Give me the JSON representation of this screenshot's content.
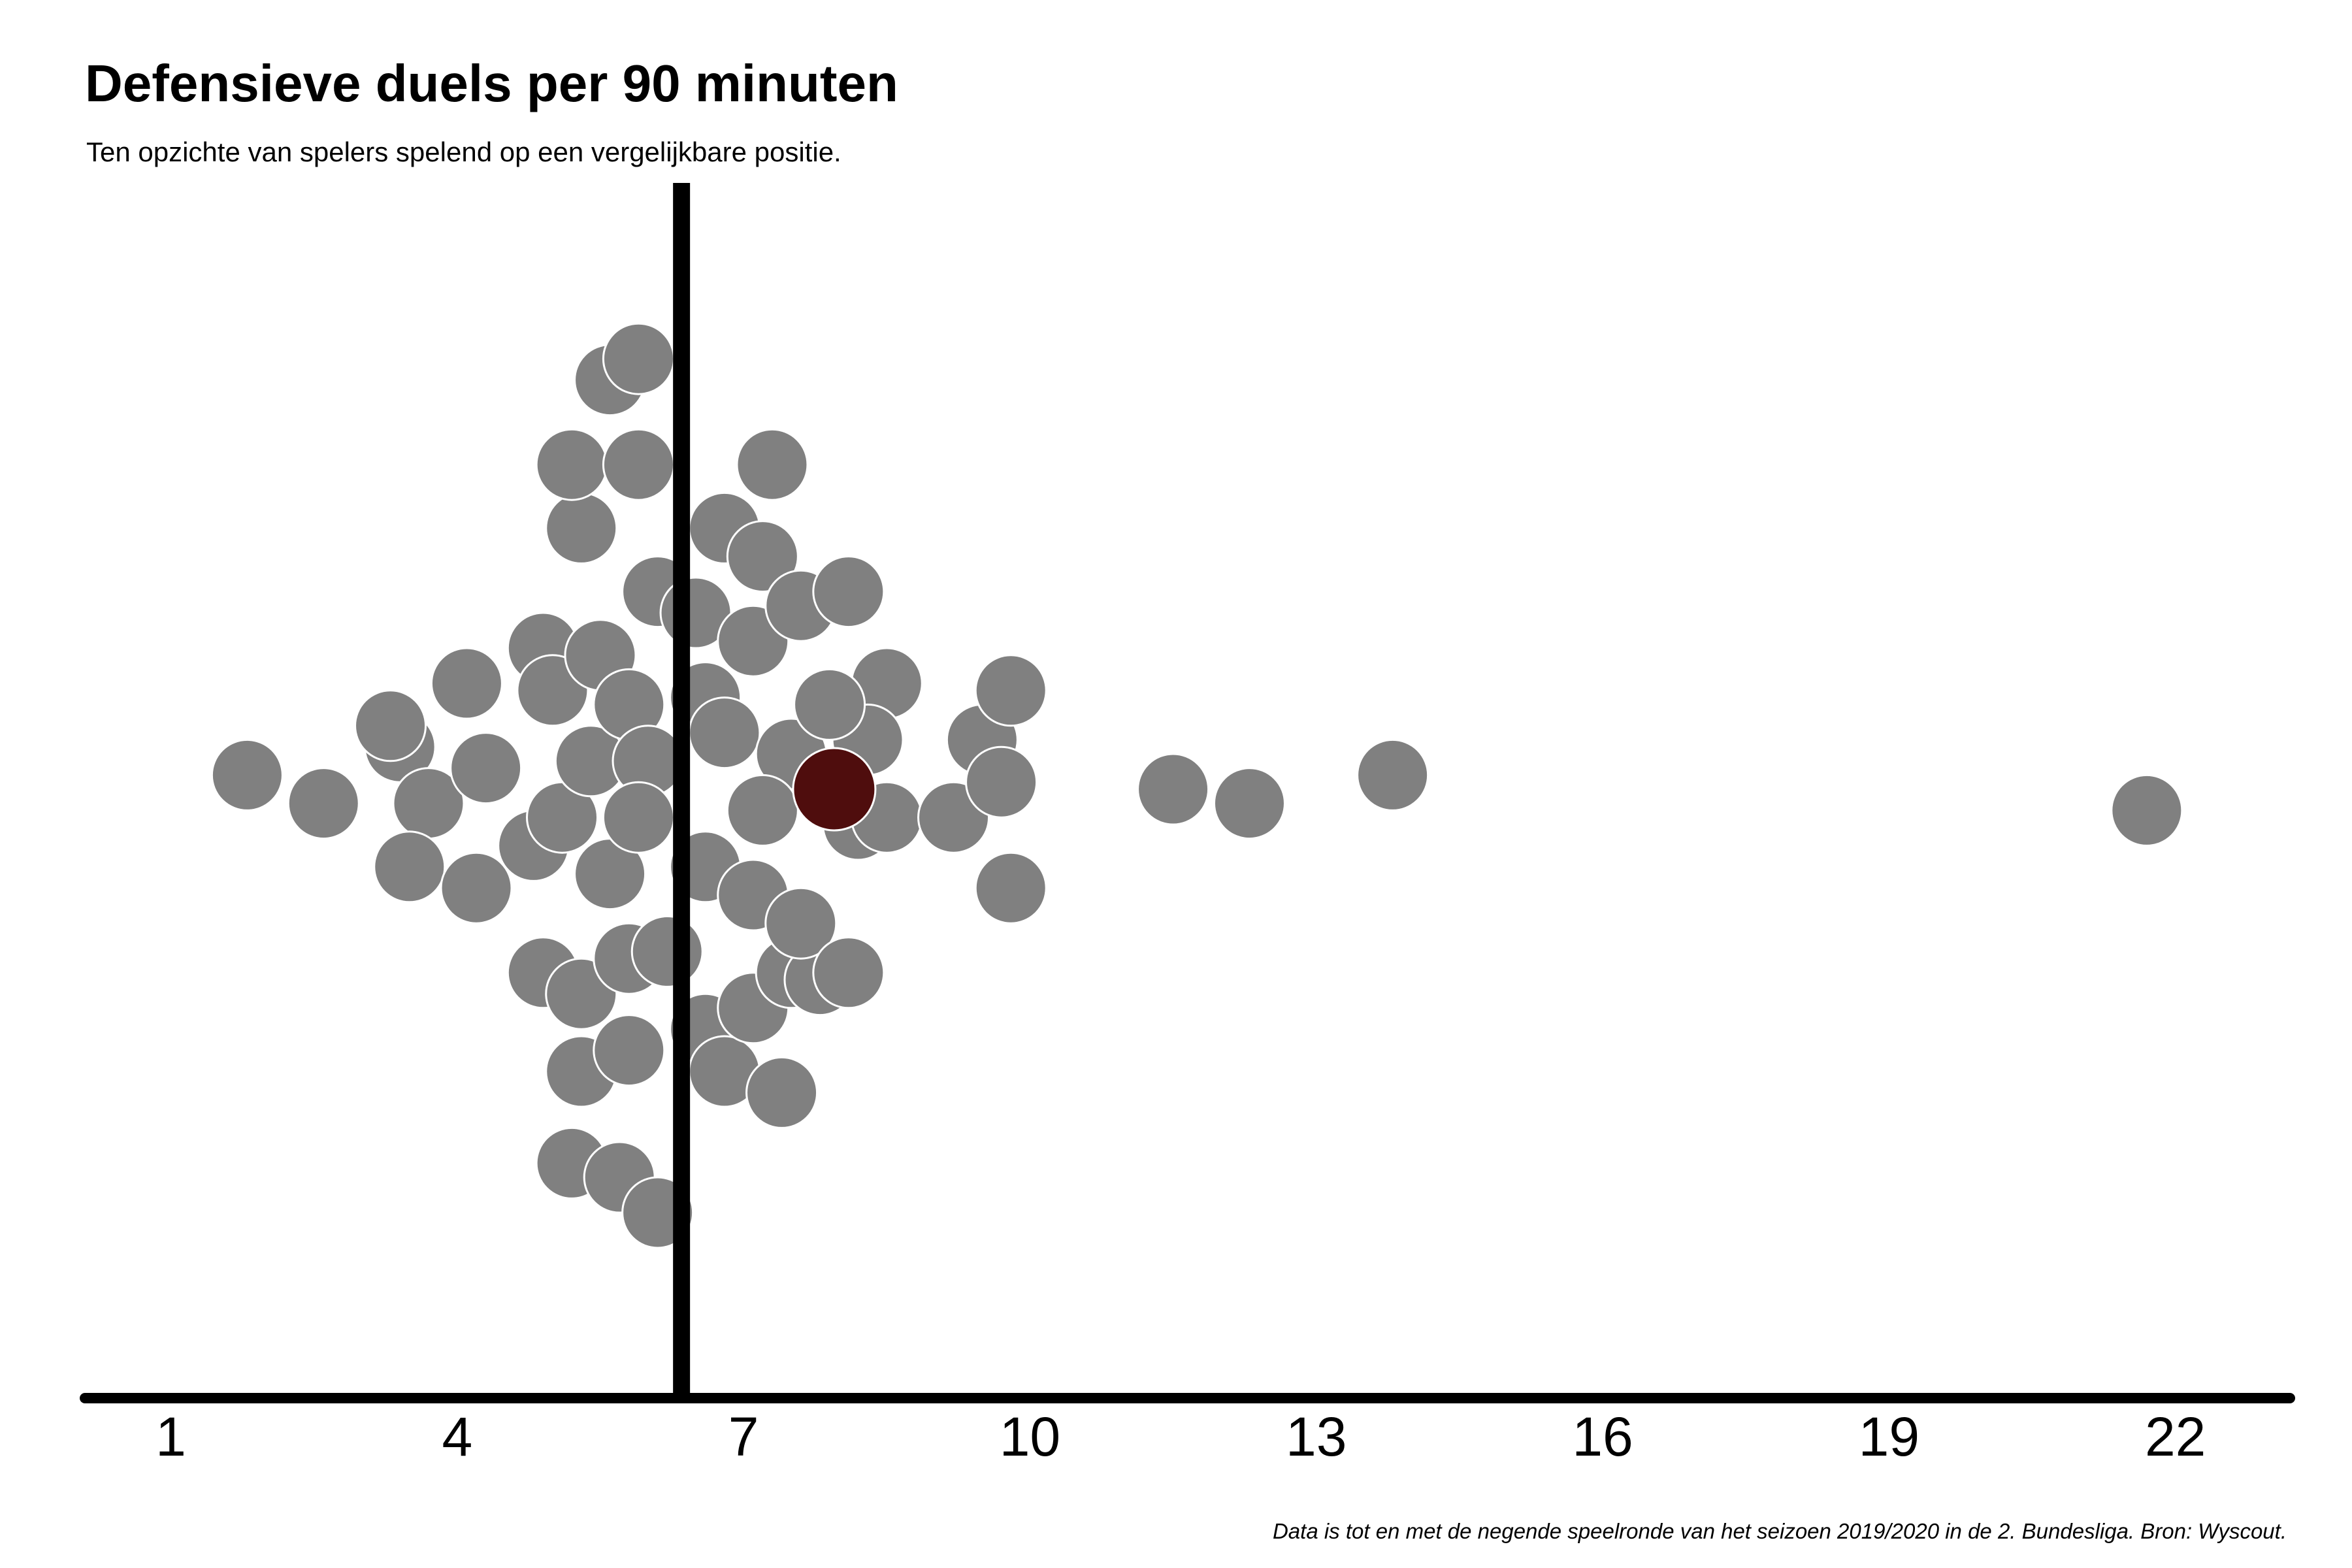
{
  "chart_data": {
    "type": "scatter",
    "subtype": "beeswarm",
    "title": "Defensieve duels per 90 minuten",
    "subtitle": "Ten opzichte van spelers spelend op een vergelijkbare positie.",
    "caption": "Data is tot en met de negende speelronde van het seizoen 2019/2020 in de 2. Bundesliga. Bron: Wyscout.",
    "xlabel": "",
    "ylabel": "",
    "xlim": [
      0.1,
      23.2
    ],
    "x_ticks": [
      1,
      4,
      7,
      10,
      13,
      16,
      19,
      22
    ],
    "x_tick_labels": [
      "1",
      "4",
      "7",
      "10",
      "13",
      "16",
      "19",
      "22"
    ],
    "reference_line": {
      "x": 6.35
    },
    "grid": false,
    "legend": "none",
    "colors": {
      "points": "#808080",
      "highlight": "#4f0d0d",
      "point_stroke": "#ffffff",
      "axis": "#000000"
    },
    "points": [
      {
        "x": 1.8,
        "y": 0.02
      },
      {
        "x": 2.6,
        "y": -0.02
      },
      {
        "x": 3.4,
        "y": 0.06
      },
      {
        "x": 3.3,
        "y": 0.09
      },
      {
        "x": 3.7,
        "y": -0.02
      },
      {
        "x": 3.5,
        "y": -0.11
      },
      {
        "x": 4.1,
        "y": 0.15
      },
      {
        "x": 4.3,
        "y": 0.03
      },
      {
        "x": 4.2,
        "y": -0.14
      },
      {
        "x": 4.9,
        "y": 0.2
      },
      {
        "x": 5.0,
        "y": 0.14
      },
      {
        "x": 4.8,
        "y": -0.08
      },
      {
        "x": 5.1,
        "y": -0.04
      },
      {
        "x": 4.9,
        "y": -0.26
      },
      {
        "x": 5.3,
        "y": -0.29
      },
      {
        "x": 5.4,
        "y": 0.04
      },
      {
        "x": 5.5,
        "y": 0.19
      },
      {
        "x": 5.6,
        "y": -0.12
      },
      {
        "x": 5.8,
        "y": 0.12
      },
      {
        "x": 5.3,
        "y": 0.37
      },
      {
        "x": 5.2,
        "y": 0.46
      },
      {
        "x": 5.9,
        "y": 0.46
      },
      {
        "x": 5.6,
        "y": 0.58
      },
      {
        "x": 5.9,
        "y": 0.61
      },
      {
        "x": 6.1,
        "y": 0.28
      },
      {
        "x": 6.0,
        "y": 0.04
      },
      {
        "x": 5.9,
        "y": -0.04
      },
      {
        "x": 5.8,
        "y": -0.24
      },
      {
        "x": 6.2,
        "y": -0.23
      },
      {
        "x": 5.3,
        "y": -0.4
      },
      {
        "x": 5.8,
        "y": -0.37
      },
      {
        "x": 5.2,
        "y": -0.53
      },
      {
        "x": 5.7,
        "y": -0.55
      },
      {
        "x": 6.1,
        "y": -0.6
      },
      {
        "x": 6.5,
        "y": 0.25
      },
      {
        "x": 6.6,
        "y": 0.13
      },
      {
        "x": 6.8,
        "y": 0.08
      },
      {
        "x": 6.6,
        "y": -0.11
      },
      {
        "x": 6.6,
        "y": -0.34
      },
      {
        "x": 6.8,
        "y": -0.4
      },
      {
        "x": 6.8,
        "y": 0.37
      },
      {
        "x": 7.2,
        "y": 0.33
      },
      {
        "x": 7.3,
        "y": 0.46
      },
      {
        "x": 7.1,
        "y": 0.21
      },
      {
        "x": 7.6,
        "y": 0.26
      },
      {
        "x": 7.5,
        "y": 0.05
      },
      {
        "x": 7.1,
        "y": -0.15
      },
      {
        "x": 7.2,
        "y": -0.03
      },
      {
        "x": 7.1,
        "y": -0.31
      },
      {
        "x": 7.5,
        "y": -0.26
      },
      {
        "x": 7.8,
        "y": -0.27
      },
      {
        "x": 7.4,
        "y": -0.43
      },
      {
        "x": 7.6,
        "y": -0.19
      },
      {
        "x": 8.1,
        "y": 0.28
      },
      {
        "x": 8.5,
        "y": 0.15
      },
      {
        "x": 8.3,
        "y": 0.07
      },
      {
        "x": 7.9,
        "y": 0.12
      },
      {
        "x": 8.2,
        "y": -0.05
      },
      {
        "x": 8.5,
        "y": -0.04
      },
      {
        "x": 8.1,
        "y": -0.26
      },
      {
        "x": 9.2,
        "y": -0.04
      },
      {
        "x": 9.5,
        "y": 0.07
      },
      {
        "x": 9.7,
        "y": 0.01
      },
      {
        "x": 9.8,
        "y": 0.14
      },
      {
        "x": 9.8,
        "y": -0.14
      },
      {
        "x": 11.5,
        "y": 0.0
      },
      {
        "x": 12.3,
        "y": -0.02
      },
      {
        "x": 13.8,
        "y": 0.02
      },
      {
        "x": 21.7,
        "y": -0.03
      },
      {
        "x": 7.95,
        "y": 0.0,
        "highlight": true
      }
    ]
  }
}
